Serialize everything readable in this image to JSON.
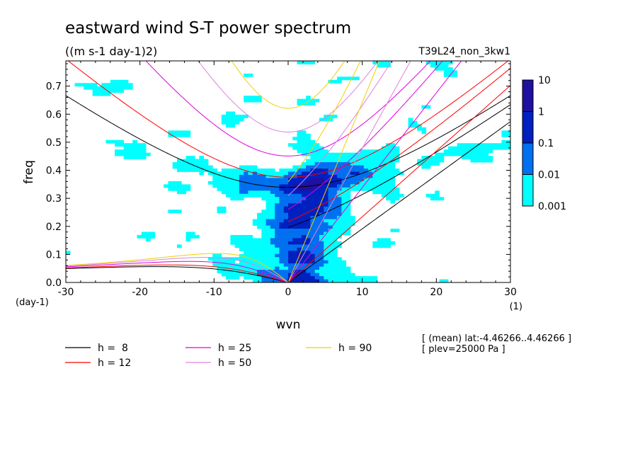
{
  "chart_data": {
    "type": "heatmap",
    "title": "eastward wind S-T power spectrum",
    "subtitle": "((m s-1 day-1)2)",
    "run_label": "T39L24_non_3kw1",
    "xlabel": "wvn",
    "x_unit": "(1)",
    "ylabel": "freq",
    "y_unit": "(day-1)",
    "xlim": [
      -30,
      30
    ],
    "ylim": [
      0,
      0.79
    ],
    "x_ticks": [
      "-30",
      "-20",
      "-10",
      "0",
      "10",
      "20",
      "30"
    ],
    "x_tick_values": [
      -30,
      -20,
      -10,
      0,
      10,
      20,
      30
    ],
    "y_ticks": [
      "0.0",
      "0.1",
      "0.2",
      "0.3",
      "0.4",
      "0.5",
      "0.6",
      "0.7"
    ],
    "y_tick_values": [
      0,
      0.1,
      0.2,
      0.3,
      0.4,
      0.5,
      0.6,
      0.7
    ],
    "colorbar": {
      "labels": [
        "10",
        "1",
        "0.1",
        "0.01",
        "0.001"
      ],
      "levels": [
        0.001,
        0.01,
        0.1,
        1,
        10
      ],
      "colors": [
        "#00ffff",
        "#0070f0",
        "#0020c0",
        "#2010a0"
      ]
    },
    "dispersion_curves": [
      {
        "label": "h =  8",
        "h": 8,
        "color": "#000000"
      },
      {
        "label": "h = 12",
        "h": 12,
        "color": "#ff0000"
      },
      {
        "label": "h = 25",
        "h": 25,
        "color": "#e000e0"
      },
      {
        "label": "h = 50",
        "h": 50,
        "color": "#e080e0"
      },
      {
        "label": "h = 90",
        "h": 90,
        "color": "#f0d000"
      }
    ],
    "annotations": [
      "[ (mean) lat:-4.46266..4.46266 ]",
      "[ plev=25000 Pa ]"
    ],
    "grid": false,
    "legend_position": "bottom-left"
  }
}
